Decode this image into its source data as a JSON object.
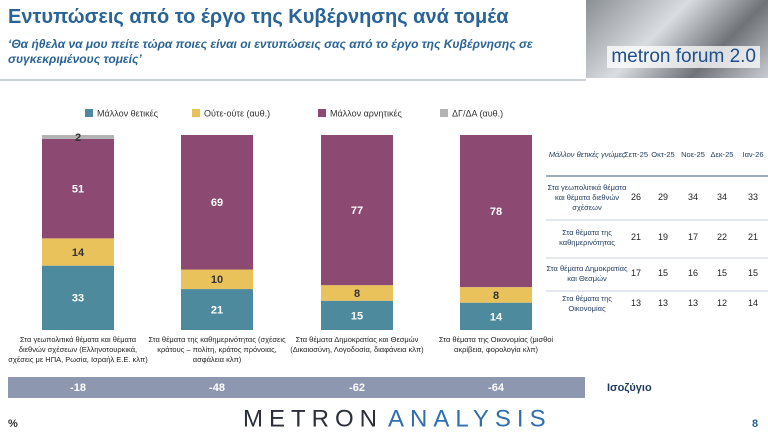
{
  "header": {
    "title": "Εντυπώσεις από το έργο της Κυβέρνησης ανά τομέα",
    "subtitle": "‘Θα ήθελα να μου πείτε τώρα ποιες είναι οι εντυπώσεις σας από το έργο της Κυβέρνησης σε συγκεκριμένους τομείς’",
    "logo": "metron forum 2.0"
  },
  "chart_data": {
    "type": "bar",
    "stacked": true,
    "categories": [
      "Στα γεωπολιτικά θέματα και θέματα διεθνών σχέσεων (Ελληνοτουρκικά, σχέσεις με ΗΠΑ, Ρωσία, Ισραήλ Ε.Ε. κλπ)",
      "Στα θέματα της καθημερινότητας (σχέσεις κράτους – πολίτη, κράτος πρόνοιας, ασφάλεια κλπ)",
      "Στα θέματα Δημοκρατίας και Θεσμών (Δικαιοσύνη, Λογοδοσία, διαφάνεια κλπ)",
      "Στα θέματα της Οικονομίας (μισθοί ακρίβεια, φορολογία κλπ)"
    ],
    "series": [
      {
        "name": "Μάλλον θετικές",
        "color": "#4e8a9d",
        "values": [
          33,
          21,
          15,
          14
        ]
      },
      {
        "name": "Ούτε-ούτε  (αυθ.)",
        "color": "#e9c25c",
        "values": [
          14,
          10,
          8,
          8
        ]
      },
      {
        "name": "Μάλλον αρνητικές",
        "color": "#8c4a72",
        "values": [
          51,
          69,
          77,
          78
        ]
      },
      {
        "name": "ΔΓ/ΔΑ (αυθ.)",
        "color": "#b3b3b3",
        "values": [
          2,
          0,
          0,
          0
        ]
      }
    ],
    "ylim": [
      0,
      100
    ]
  },
  "balance": {
    "label": "Ισοζύγιο",
    "values": [
      -18,
      -48,
      -62,
      -64
    ]
  },
  "table": {
    "corner": "Μάλλον θετικές γνώμες",
    "columns": [
      "Σεπ-25",
      "Οκτ-25",
      "Νοε-25",
      "Δεκ-25",
      "Ιαν-26"
    ],
    "rows": [
      {
        "label": "Στα γεωπολιτικά θέματα και θέματα διεθνών σχέσεων",
        "values": [
          26,
          29,
          34,
          34,
          33
        ]
      },
      {
        "label": "Στα θέματα της καθημερινότητας",
        "values": [
          21,
          19,
          17,
          22,
          21
        ]
      },
      {
        "label": "Στα θέματα Δημοκρατίας και Θεσμών",
        "values": [
          17,
          15,
          16,
          15,
          15
        ]
      },
      {
        "label": "Στα θέματα της Οικονομίας",
        "values": [
          13,
          13,
          13,
          12,
          14
        ]
      }
    ]
  },
  "footer": {
    "unit": "%",
    "brand_dark": "METRON",
    "brand_blue": "ANALYSIS",
    "page": "8"
  }
}
